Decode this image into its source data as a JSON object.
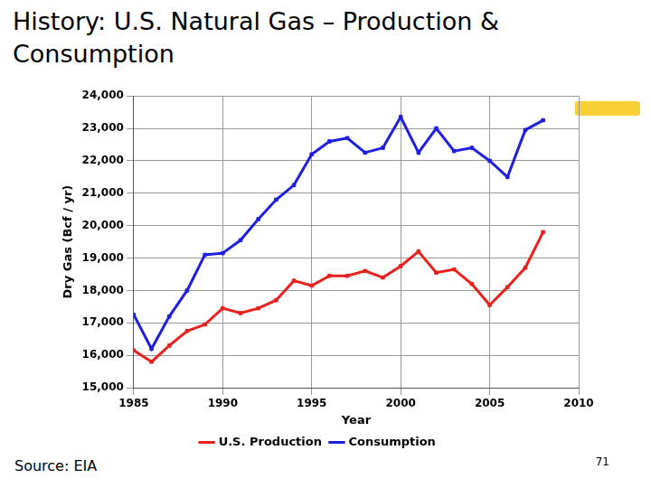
{
  "chart_data": {
    "type": "line",
    "title": "History:  U.S. Natural Gas – Production & Consumption",
    "x_label": "Year",
    "y_label": "Dry Gas (Bcf / yr)",
    "annotations": [
      "Source: EIA",
      "71"
    ],
    "x": [
      1985,
      1986,
      1987,
      1988,
      1989,
      1990,
      1991,
      1992,
      1993,
      1994,
      1995,
      1996,
      1997,
      1998,
      1999,
      2000,
      2001,
      2002,
      2003,
      2004,
      2005,
      2006,
      2007,
      2008
    ],
    "series": [
      {
        "name": "U.S. Production",
        "color": "#e8211c",
        "marker": "square",
        "line_style": "solid",
        "values": [
          16150,
          15800,
          16300,
          16750,
          16950,
          17450,
          17300,
          17450,
          17700,
          18300,
          18150,
          18450,
          18450,
          18600,
          18400,
          18750,
          19200,
          18550,
          18650,
          18200,
          17550,
          18100,
          18700,
          19800
        ]
      },
      {
        "name": "Consumption",
        "color": "#1f1fe0",
        "marker": "square",
        "line_style": "solid",
        "values": [
          17250,
          16200,
          17200,
          18000,
          19100,
          19150,
          19550,
          20200,
          20800,
          21250,
          22200,
          22600,
          22700,
          22250,
          22400,
          23350,
          22250,
          23000,
          22300,
          22400,
          22000,
          21500,
          22950,
          23250
        ]
      }
    ],
    "xlim": [
      1985,
      2010
    ],
    "xticks": [
      1985,
      1990,
      1995,
      2000,
      2005,
      2010
    ],
    "ylim": [
      15000,
      24000
    ],
    "yticks": [
      {
        "value": 15000,
        "label": "15,000"
      },
      {
        "value": 16000,
        "label": "16,000"
      },
      {
        "value": 17000,
        "label": "17,000"
      },
      {
        "value": 18000,
        "label": "18,000"
      },
      {
        "value": 19000,
        "label": "19,000"
      },
      {
        "value": 20000,
        "label": "20,000"
      },
      {
        "value": 21000,
        "label": "21,000"
      },
      {
        "value": 22000,
        "label": "22,000"
      },
      {
        "value": 23000,
        "label": "23,000"
      },
      {
        "value": 24000,
        "label": "24,000"
      }
    ],
    "grid": true,
    "legend": "bottom"
  }
}
